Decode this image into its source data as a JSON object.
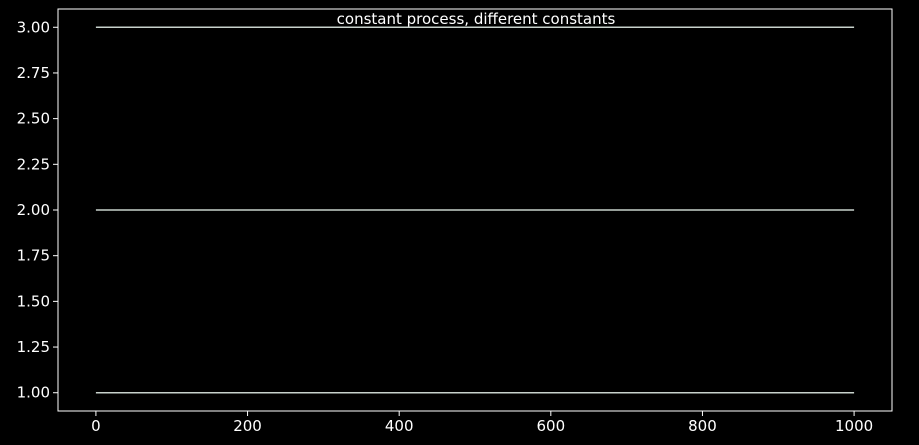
{
  "chart_data": {
    "type": "line",
    "title": "constant process, different constants",
    "xlabel": "",
    "ylabel": "",
    "xlim": [
      -50,
      1050
    ],
    "ylim": [
      0.9,
      3.1
    ],
    "x_ticks": [
      0,
      200,
      400,
      600,
      800,
      1000
    ],
    "x_tick_labels": [
      "0",
      "200",
      "400",
      "600",
      "800",
      "1000"
    ],
    "y_ticks": [
      1.0,
      1.25,
      1.5,
      1.75,
      2.0,
      2.25,
      2.5,
      2.75,
      3.0
    ],
    "y_tick_labels": [
      "1.00",
      "1.25",
      "1.50",
      "1.75",
      "2.00",
      "2.25",
      "2.50",
      "2.75",
      "3.00"
    ],
    "grid": false,
    "series": [
      {
        "x": [
          0,
          1000
        ],
        "values": [
          3.0,
          3.0
        ],
        "color": "#c8d2cc"
      },
      {
        "x": [
          0,
          1000
        ],
        "values": [
          2.0,
          2.0
        ],
        "color": "#c8d2cc"
      },
      {
        "x": [
          0,
          1000
        ],
        "values": [
          1.0,
          1.0
        ],
        "color": "#c8d2cc"
      }
    ],
    "colors": {
      "background": "#000000",
      "axes": "#ffffff",
      "text": "#ffffff"
    }
  }
}
